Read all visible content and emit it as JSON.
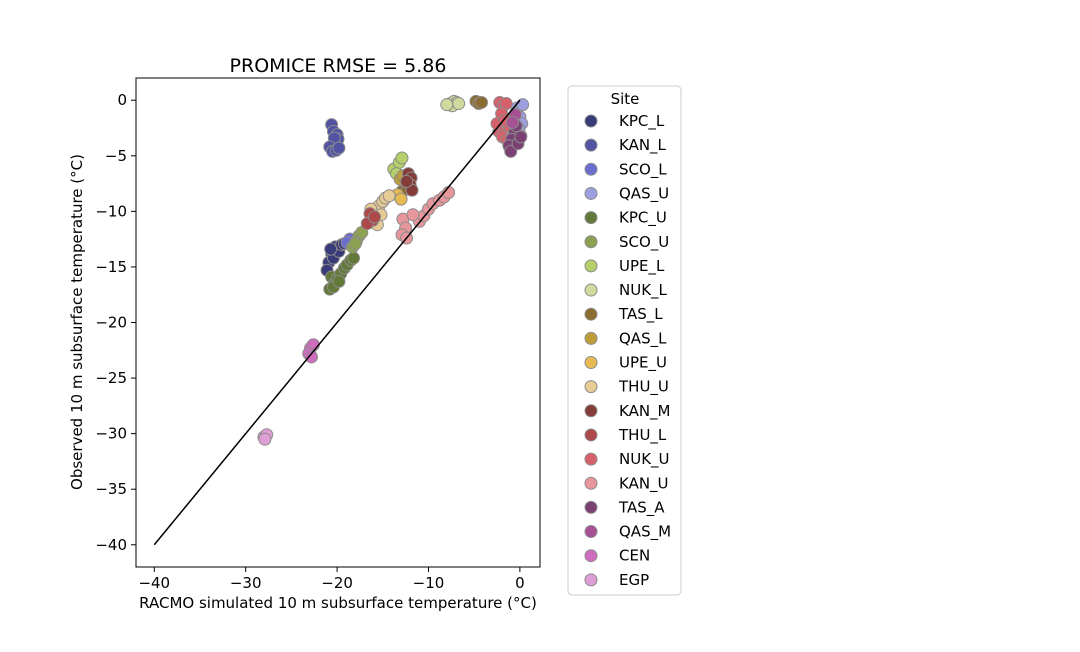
{
  "chart_data": {
    "type": "scatter",
    "title": "PROMICE RMSE = 5.86",
    "xlabel": "RACMO simulated 10 m subsurface temperature (°C)",
    "ylabel": "Observed 10 m subsurface temperature (°C)",
    "xlim": [
      -42,
      2.2
    ],
    "ylim": [
      -42,
      2
    ],
    "xticks": [
      -40,
      -30,
      -20,
      -10,
      0
    ],
    "yticks": [
      0,
      -5,
      -10,
      -15,
      -20,
      -25,
      -30,
      -35,
      -40
    ],
    "grid": false,
    "legend": {
      "title": "Site",
      "placement": "outside-right"
    },
    "reference_line": {
      "x": [
        -40,
        0
      ],
      "y": [
        -40,
        0
      ],
      "color": "#000000"
    },
    "series": [
      {
        "name": "KPC_L",
        "color": "#393b79",
        "points": [
          [
            -20.2,
            -13.2
          ],
          [
            -20.6,
            -13.8
          ],
          [
            -20.9,
            -14.6
          ],
          [
            -21.1,
            -15.3
          ],
          [
            -20.4,
            -14.2
          ],
          [
            -19.8,
            -13.6
          ],
          [
            -19.5,
            -13.0
          ],
          [
            -19.2,
            -12.9
          ],
          [
            -20.7,
            -13.4
          ]
        ]
      },
      {
        "name": "KAN_L",
        "color": "#5254a3",
        "points": [
          [
            -20.6,
            -2.2
          ],
          [
            -20.4,
            -2.8
          ],
          [
            -20.0,
            -3.1
          ],
          [
            -19.9,
            -3.5
          ],
          [
            -20.3,
            -3.4
          ],
          [
            -20.8,
            -4.2
          ],
          [
            -20.5,
            -4.6
          ],
          [
            -20.1,
            -4.5
          ],
          [
            -19.8,
            -4.3
          ]
        ]
      },
      {
        "name": "SCO_L",
        "color": "#6b6ecf",
        "points": [
          [
            -18.6,
            -12.5
          ],
          [
            -18.9,
            -12.8
          ]
        ]
      },
      {
        "name": "QAS_U",
        "color": "#9c9ede",
        "points": [
          [
            -0.3,
            -0.7
          ],
          [
            0.0,
            -1.5
          ],
          [
            0.2,
            -2.1
          ],
          [
            -0.1,
            -2.6
          ],
          [
            0.1,
            -3.2
          ],
          [
            -0.5,
            -1.2
          ],
          [
            0.3,
            -0.4
          ]
        ]
      },
      {
        "name": "KPC_U",
        "color": "#637939",
        "points": [
          [
            -20.6,
            -15.9
          ],
          [
            -20.3,
            -16.5
          ],
          [
            -20.0,
            -16.1
          ],
          [
            -19.6,
            -15.6
          ],
          [
            -19.2,
            -15.1
          ],
          [
            -18.9,
            -14.8
          ],
          [
            -18.5,
            -14.4
          ],
          [
            -18.2,
            -14.2
          ],
          [
            -20.8,
            -17.0
          ],
          [
            -20.4,
            -16.8
          ],
          [
            -19.8,
            -16.3
          ]
        ]
      },
      {
        "name": "SCO_U",
        "color": "#8ca252",
        "points": [
          [
            -18.3,
            -13.2
          ],
          [
            -17.9,
            -12.7
          ],
          [
            -17.6,
            -12.2
          ],
          [
            -17.3,
            -11.9
          ],
          [
            -18.0,
            -12.9
          ]
        ]
      },
      {
        "name": "UPE_L",
        "color": "#b5cf6b",
        "points": [
          [
            -13.8,
            -6.2
          ],
          [
            -13.2,
            -5.6
          ],
          [
            -12.9,
            -5.2
          ],
          [
            -13.5,
            -6.6
          ]
        ]
      },
      {
        "name": "NUK_L",
        "color": "#cedb9c",
        "points": [
          [
            -7.6,
            -0.3
          ],
          [
            -7.2,
            -0.1
          ],
          [
            -6.9,
            -0.2
          ],
          [
            -7.4,
            -0.5
          ],
          [
            -8.0,
            -0.4
          ],
          [
            -6.7,
            -0.3
          ]
        ]
      },
      {
        "name": "TAS_L",
        "color": "#8c6d31",
        "points": [
          [
            -4.8,
            -0.1
          ],
          [
            -4.5,
            -0.3
          ],
          [
            -4.2,
            -0.2
          ],
          [
            -12.6,
            -7.6
          ],
          [
            -12.9,
            -8.2
          ],
          [
            -12.3,
            -8.0
          ]
        ]
      },
      {
        "name": "QAS_L",
        "color": "#bd9e39",
        "points": [
          [
            -13.1,
            -7.1
          ],
          [
            -12.8,
            -6.8
          ]
        ]
      },
      {
        "name": "UPE_U",
        "color": "#e7ba52",
        "points": [
          [
            -13.4,
            -8.5
          ],
          [
            -13.0,
            -8.9
          ]
        ]
      },
      {
        "name": "THU_U",
        "color": "#e7cb94",
        "points": [
          [
            -15.8,
            -10.0
          ],
          [
            -15.4,
            -9.5
          ],
          [
            -15.0,
            -9.1
          ],
          [
            -14.7,
            -8.8
          ],
          [
            -14.3,
            -8.6
          ],
          [
            -16.0,
            -10.6
          ],
          [
            -15.6,
            -11.2
          ],
          [
            -16.3,
            -9.8
          ],
          [
            -15.2,
            -10.3
          ]
        ]
      },
      {
        "name": "KAN_M",
        "color": "#843c39",
        "points": [
          [
            -12.2,
            -6.6
          ],
          [
            -11.9,
            -7.0
          ],
          [
            -12.0,
            -7.6
          ],
          [
            -11.8,
            -8.1
          ],
          [
            -12.4,
            -7.3
          ]
        ]
      },
      {
        "name": "THU_L",
        "color": "#ad494a",
        "points": [
          [
            -16.4,
            -10.2
          ],
          [
            -16.1,
            -10.8
          ],
          [
            -16.7,
            -11.1
          ],
          [
            -15.9,
            -10.5
          ]
        ]
      },
      {
        "name": "NUK_U",
        "color": "#d6616b",
        "points": [
          [
            -2.2,
            -0.2
          ],
          [
            -1.8,
            -0.5
          ],
          [
            -1.5,
            -0.3
          ],
          [
            -2.0,
            -1.2
          ],
          [
            -1.7,
            -2.4
          ],
          [
            -2.3,
            -2.8
          ],
          [
            -1.9,
            -3.3
          ],
          [
            -1.4,
            -3.6
          ],
          [
            -2.5,
            -2.1
          ],
          [
            -1.6,
            -1.8
          ]
        ]
      },
      {
        "name": "KAN_U",
        "color": "#e7969c",
        "points": [
          [
            -12.8,
            -10.7
          ],
          [
            -12.5,
            -11.5
          ],
          [
            -12.9,
            -12.1
          ],
          [
            -12.4,
            -12.4
          ],
          [
            -11.0,
            -10.9
          ],
          [
            -10.5,
            -10.4
          ],
          [
            -10.0,
            -9.8
          ],
          [
            -9.5,
            -9.3
          ],
          [
            -8.8,
            -9.0
          ],
          [
            -8.3,
            -8.7
          ],
          [
            -7.8,
            -8.3
          ],
          [
            -11.7,
            -10.3
          ]
        ]
      },
      {
        "name": "TAS_A",
        "color": "#7b4173",
        "points": [
          [
            -0.6,
            -2.9
          ],
          [
            -0.9,
            -3.5
          ],
          [
            -1.2,
            -4.1
          ],
          [
            -1.0,
            -4.6
          ],
          [
            -0.2,
            -3.9
          ],
          [
            0.1,
            -3.3
          ],
          [
            -0.4,
            -2.3
          ]
        ]
      },
      {
        "name": "QAS_M",
        "color": "#a55194",
        "points": [
          [
            -0.5,
            -1.3
          ],
          [
            -0.8,
            -2.0
          ]
        ]
      },
      {
        "name": "CEN",
        "color": "#ce6dbd",
        "points": [
          [
            -22.9,
            -22.3
          ],
          [
            -22.6,
            -22.0
          ],
          [
            -23.1,
            -22.8
          ],
          [
            -22.8,
            -23.1
          ]
        ]
      },
      {
        "name": "EGP",
        "color": "#de9ed6",
        "points": [
          [
            -28.0,
            -30.3
          ],
          [
            -27.7,
            -30.1
          ],
          [
            -27.9,
            -30.5
          ]
        ]
      }
    ]
  }
}
